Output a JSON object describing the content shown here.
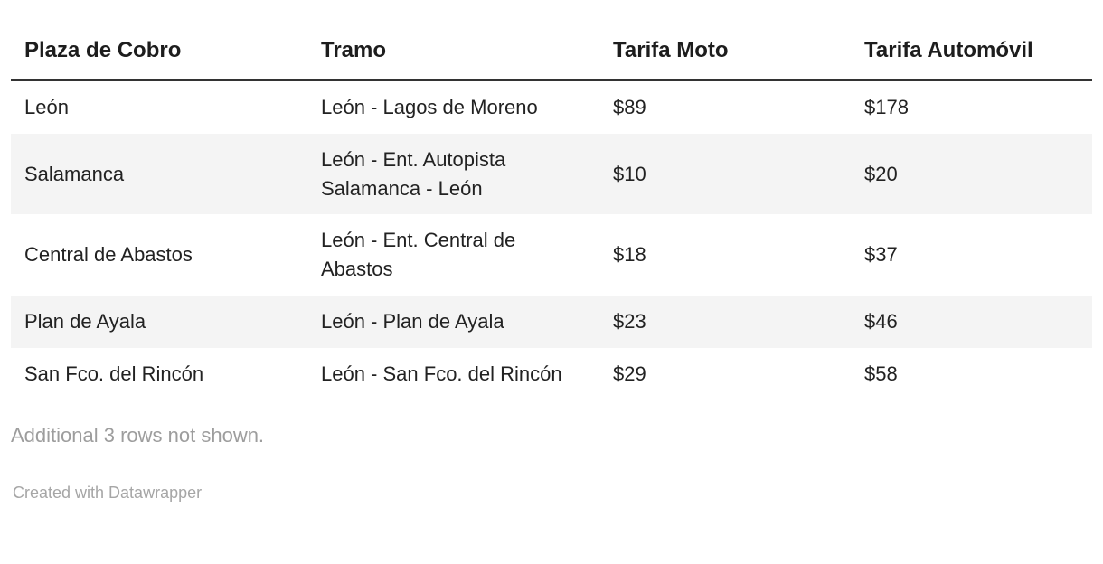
{
  "chart_data": {
    "type": "table",
    "columns": [
      "Plaza de Cobro",
      "Tramo",
      "Tarifa Moto",
      "Tarifa Automóvil"
    ],
    "rows": [
      [
        "León",
        "León - Lagos de Moreno",
        "$89",
        "$178"
      ],
      [
        "Salamanca",
        "León - Ent. Autopista Salamanca - León",
        "$10",
        "$20"
      ],
      [
        "Central de Abastos",
        "León - Ent. Central de Abastos",
        "$18",
        "$37"
      ],
      [
        "Plan de Ayala",
        "León - Plan de Ayala",
        "$23",
        "$46"
      ],
      [
        "San Fco. del Rincón",
        "León - San Fco. del Rincón",
        "$29",
        "$58"
      ]
    ],
    "footer_note": "Additional 3 rows not shown.",
    "attribution": "Created with Datawrapper",
    "layout_hints": {
      "zebra_striping": true,
      "header_rule": "thick-black-bottom-border",
      "alignment": "left"
    }
  },
  "colors": {
    "background": "#ffffff",
    "body_text": "#222222",
    "header_rule": "#333333",
    "zebra_stripe": "#f4f4f4",
    "muted_text": "#9d9d9d"
  }
}
